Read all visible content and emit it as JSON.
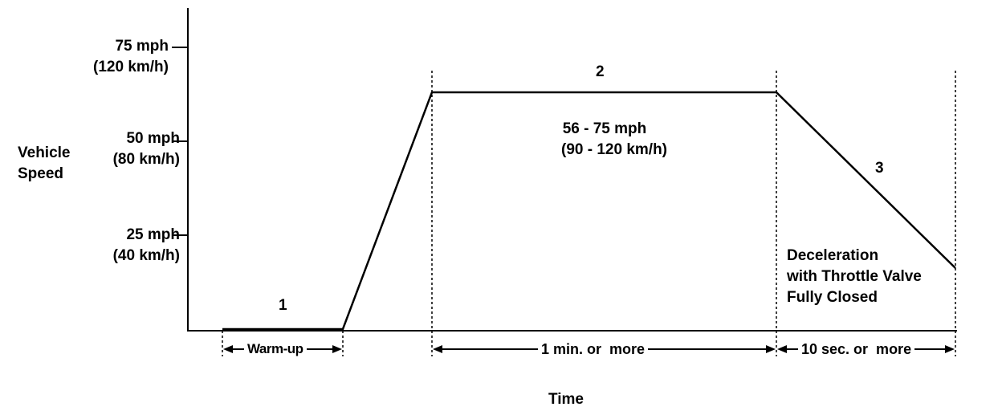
{
  "y_axis": {
    "title": [
      "Vehicle",
      "Speed"
    ],
    "ticks": [
      {
        "mph": "75 mph",
        "kmh": "(120 km/h)"
      },
      {
        "mph": "50 mph",
        "kmh": "(80 km/h)"
      },
      {
        "mph": "25 mph",
        "kmh": "(40 km/h)"
      }
    ]
  },
  "x_axis": {
    "title": "Time"
  },
  "phases": [
    {
      "number": "1",
      "duration": "Warm-up"
    },
    {
      "number": "2",
      "duration": "1 min. or  more",
      "speed_range": [
        "56 - 75 mph",
        "(90 - 120 km/h)"
      ]
    },
    {
      "number": "3",
      "duration": "10 sec. or  more",
      "note": [
        "Deceleration",
        "with Throttle Valve",
        "Fully Closed"
      ]
    }
  ]
}
